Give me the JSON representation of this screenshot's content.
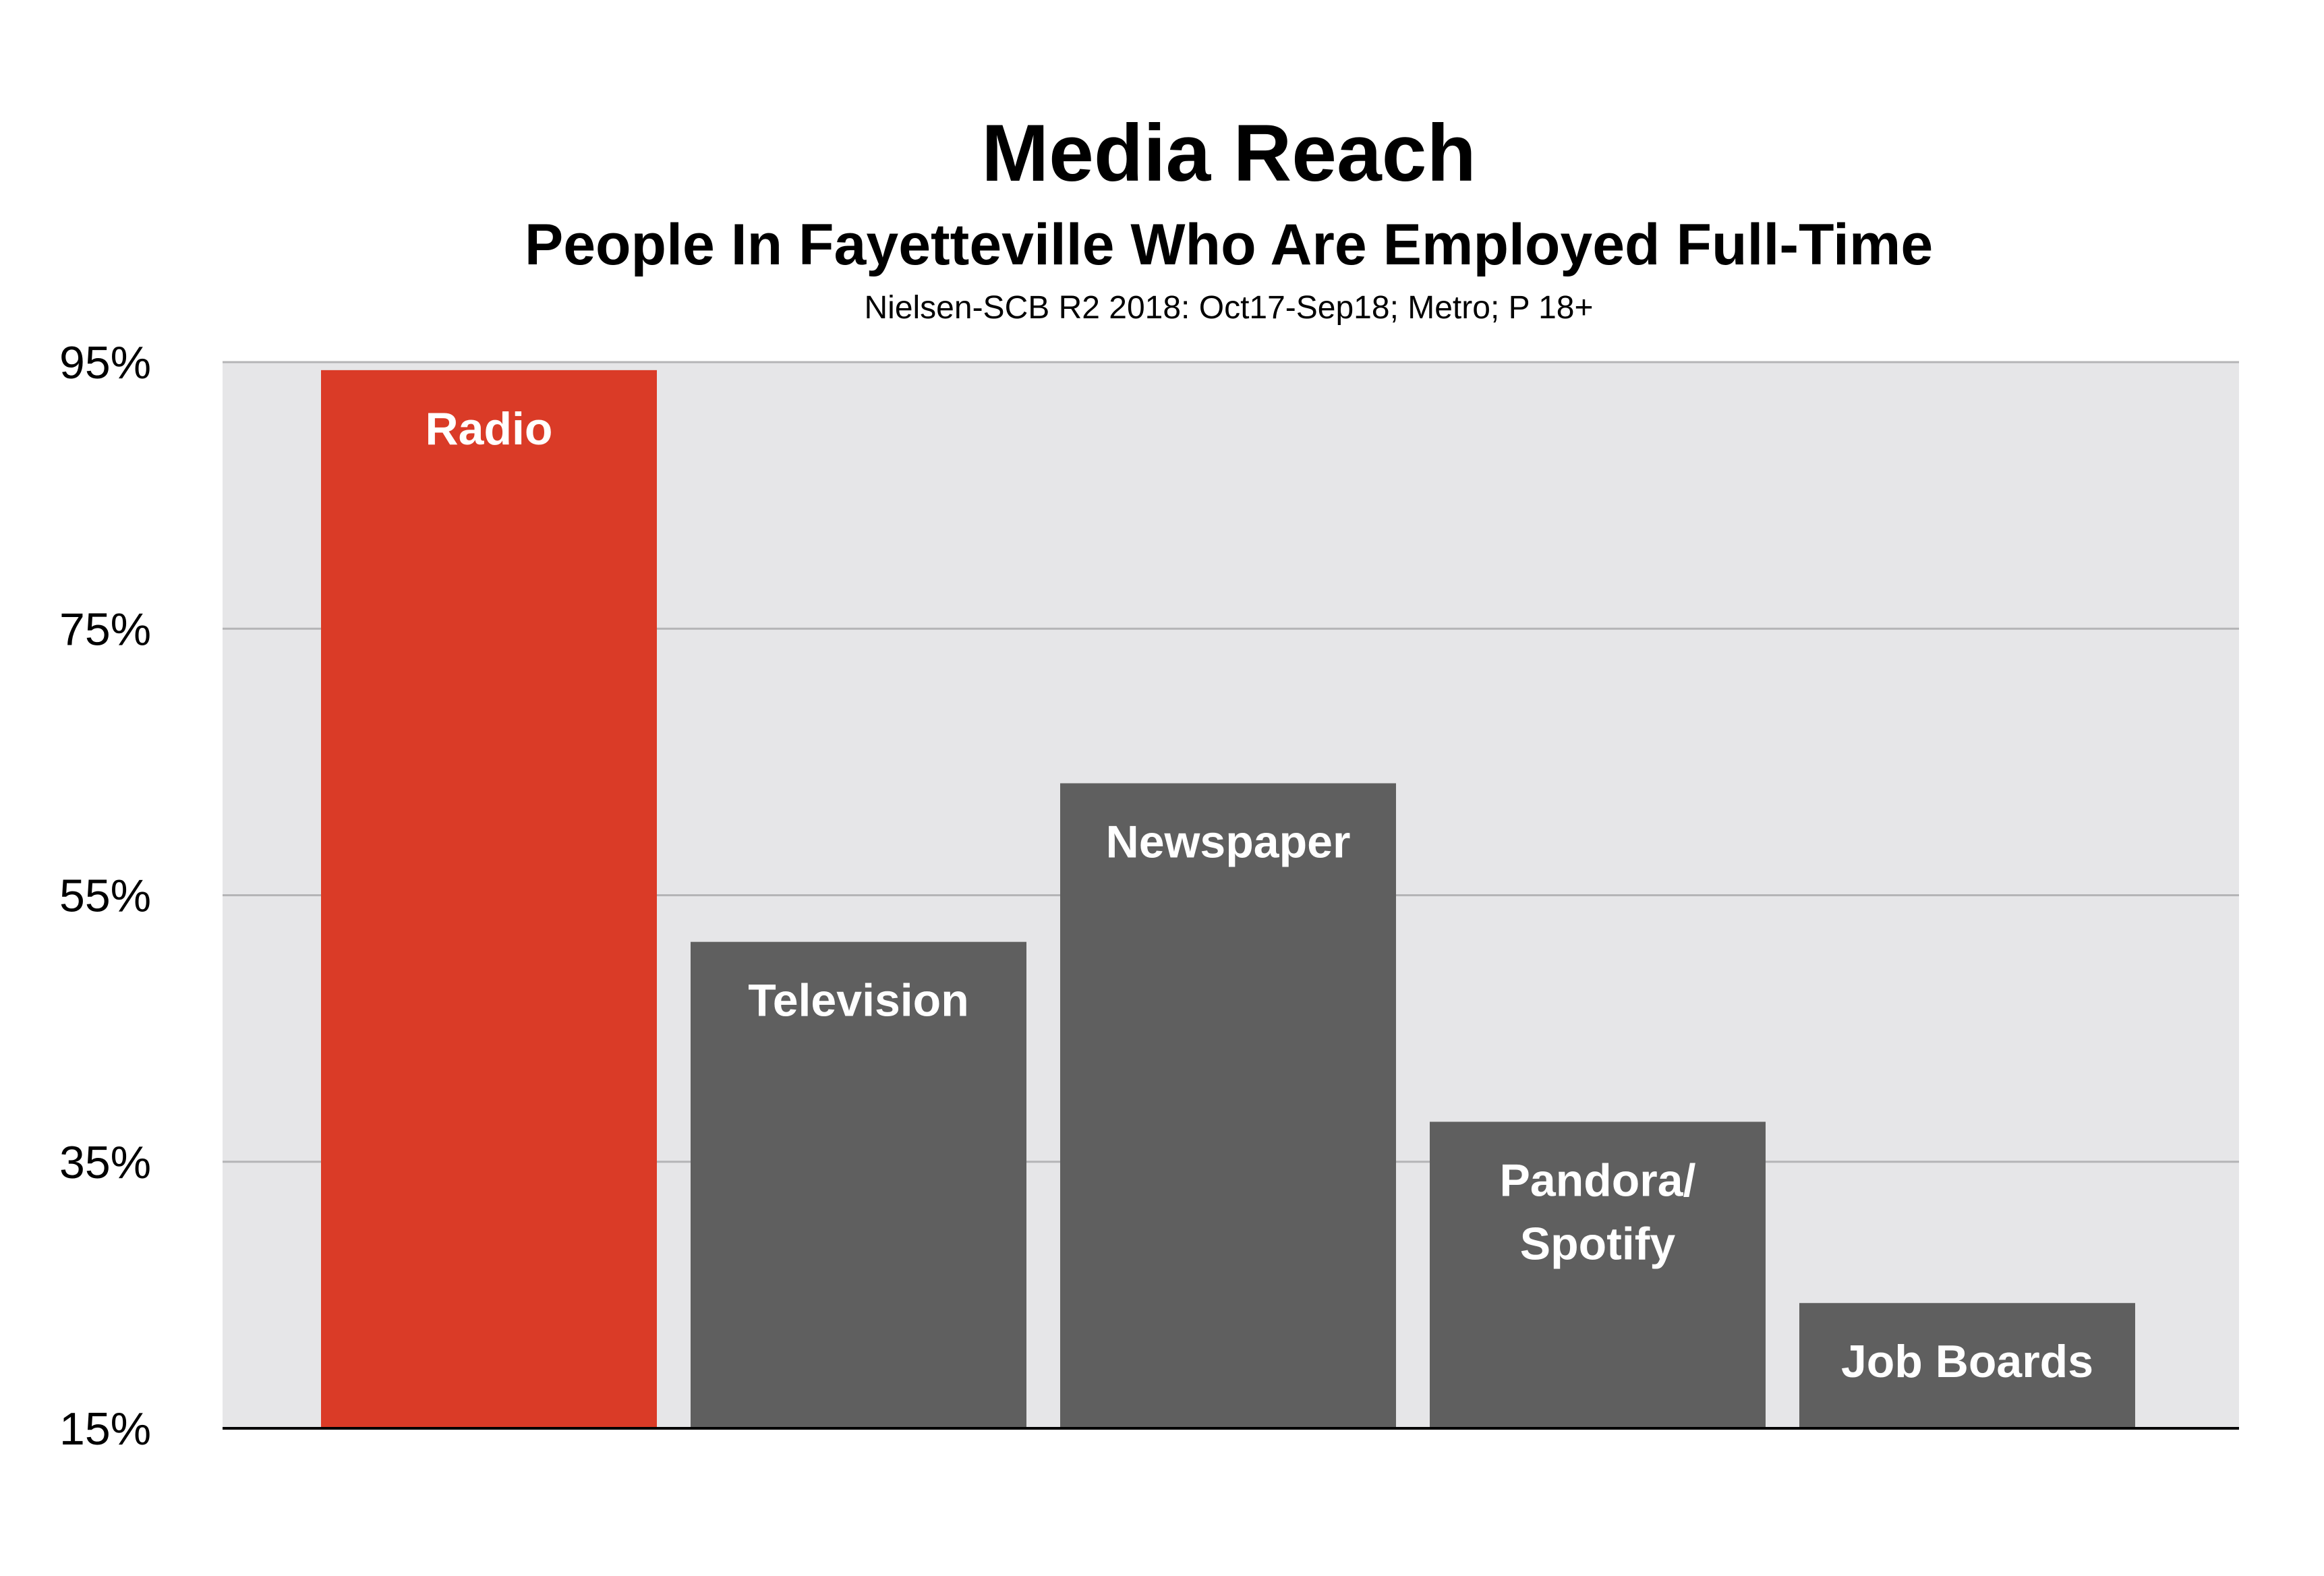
{
  "chart_data": {
    "type": "bar",
    "title": "Media Reach",
    "subtitle": "People In Fayetteville Who Are Employed Full-Time",
    "source": "Nielsen-SCB R2 2018: Oct17-Sep18; Metro; P 18+",
    "xlabel": "",
    "ylabel": "",
    "ylim": [
      15,
      95
    ],
    "yticks": [
      15,
      35,
      55,
      75,
      95
    ],
    "ytick_labels": [
      "15%",
      "35%",
      "55%",
      "75%",
      "95%"
    ],
    "grid": true,
    "categories": [
      "Radio",
      "Television",
      "Newspaper",
      "Pandora/\nSpotify",
      "Job Boards"
    ],
    "values": [
      94.4,
      51.5,
      63.4,
      38.0,
      24.4
    ],
    "colors": [
      "#da3b27",
      "#5f5f5f",
      "#5f5f5f",
      "#5f5f5f",
      "#5f5f5f"
    ],
    "plot_background": "#e6e6e8",
    "gridline_color": "#b4b4b6",
    "axis_color": "#000000"
  }
}
